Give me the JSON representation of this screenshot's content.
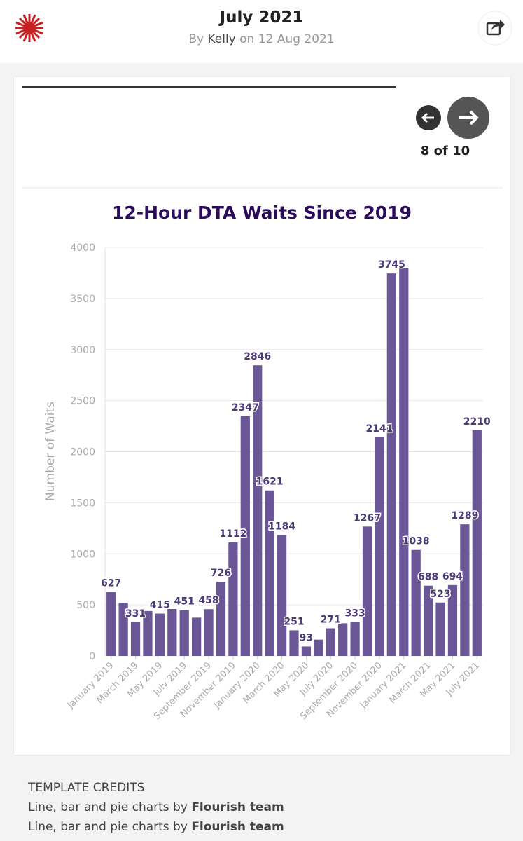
{
  "header": {
    "title": "July 2021",
    "by": "By",
    "author": "Kelly",
    "on": "on",
    "date": "12 Aug 2021"
  },
  "nav": {
    "position": "8 of 10"
  },
  "chart_data": {
    "type": "bar",
    "title": "12-Hour DTA Waits Since 2019",
    "y_label": "Number of Waits",
    "color": "#6b5697",
    "categories": [
      "January 2019",
      null,
      "March 2019",
      null,
      "May 2019",
      null,
      "July 2019",
      null,
      "September 2019",
      null,
      "November 2019",
      null,
      "January 2020",
      null,
      "March 2020",
      null,
      "May 2020",
      null,
      "July 2020",
      null,
      "September 2020",
      null,
      "November 2020",
      null,
      "January 2021",
      null,
      "March 2021",
      null,
      "May 2021",
      null,
      "July 2021"
    ],
    "values": [
      627,
      520,
      331,
      440,
      415,
      460,
      451,
      375,
      458,
      726,
      1112,
      2347,
      2846,
      1621,
      1184,
      251,
      93,
      160,
      271,
      320,
      333,
      1267,
      2141,
      3745,
      3800,
      1038,
      688,
      523,
      694,
      1289,
      2210
    ],
    "value_labels": [
      "627",
      null,
      "331",
      null,
      "415",
      null,
      "451",
      null,
      "458",
      "726",
      "1112",
      "2347",
      "2846",
      "1621",
      "1184",
      "251",
      "93",
      null,
      "271",
      null,
      "333",
      "1267",
      "2141",
      "3745",
      null,
      "1038",
      "688",
      "523",
      "694",
      "1289",
      "2210"
    ],
    "ylim": [
      0,
      4000
    ],
    "yticks": [
      0,
      500,
      1000,
      1500,
      2000,
      2500,
      3000,
      3500,
      4000
    ],
    "grid": true
  },
  "credits": {
    "heading": "TEMPLATE CREDITS",
    "lines": [
      {
        "text": "Line, bar and pie charts by",
        "bold": "Flourish team"
      },
      {
        "text": "Line, bar and pie charts by",
        "bold": "Flourish team"
      }
    ]
  }
}
